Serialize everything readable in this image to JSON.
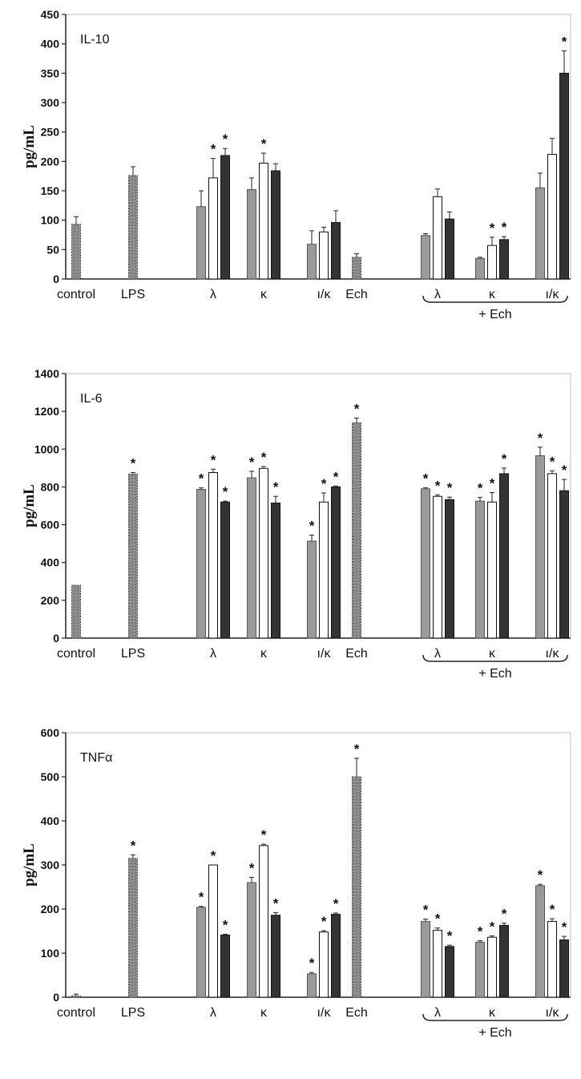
{
  "colors": {
    "gray": "#9a9a9a",
    "white": "#ffffff",
    "dark": "#333333",
    "stipple": "#8f8f8f",
    "axis": "#222222",
    "frame": "#bdbdbd"
  },
  "chart_data": [
    {
      "type": "bar",
      "title": "IL-10",
      "ylabel": "pg/mL",
      "ylim": [
        0,
        450
      ],
      "yticks": [
        0,
        50,
        100,
        150,
        200,
        250,
        300,
        350,
        400,
        450
      ],
      "x_labels": [
        "control",
        "LPS",
        "λ",
        "κ",
        "ı/κ",
        "Ech",
        "λ",
        "κ",
        "ı/κ"
      ],
      "bracket_label": "+ Ech",
      "groups": [
        {
          "bars": [
            {
              "style": "stipple",
              "value": 93,
              "err": 13,
              "sig": false
            }
          ]
        },
        {
          "bars": [
            {
              "style": "stipple",
              "value": 176,
              "err": 15,
              "sig": false
            }
          ]
        },
        {
          "bars": [
            {
              "style": "gray",
              "value": 123,
              "err": 27,
              "sig": false
            },
            {
              "style": "white",
              "value": 172,
              "err": 33,
              "sig": true
            },
            {
              "style": "dark",
              "value": 210,
              "err": 12,
              "sig": true
            }
          ]
        },
        {
          "bars": [
            {
              "style": "gray",
              "value": 152,
              "err": 20,
              "sig": false
            },
            {
              "style": "white",
              "value": 197,
              "err": 17,
              "sig": true
            },
            {
              "style": "dark",
              "value": 184,
              "err": 12,
              "sig": false
            }
          ]
        },
        {
          "bars": [
            {
              "style": "gray",
              "value": 59,
              "err": 23,
              "sig": false
            },
            {
              "style": "white",
              "value": 80,
              "err": 8,
              "sig": false
            },
            {
              "style": "dark",
              "value": 96,
              "err": 20,
              "sig": false
            }
          ]
        },
        {
          "bars": [
            {
              "style": "stipple",
              "value": 37,
              "err": 6,
              "sig": false
            }
          ]
        },
        {
          "bars": [
            {
              "style": "gray",
              "value": 74,
              "err": 3,
              "sig": false
            },
            {
              "style": "white",
              "value": 140,
              "err": 13,
              "sig": false
            },
            {
              "style": "dark",
              "value": 102,
              "err": 12,
              "sig": false
            }
          ]
        },
        {
          "bars": [
            {
              "style": "gray",
              "value": 35,
              "err": 2,
              "sig": false
            },
            {
              "style": "white",
              "value": 57,
              "err": 14,
              "sig": true
            },
            {
              "style": "dark",
              "value": 67,
              "err": 5,
              "sig": true
            }
          ]
        },
        {
          "bars": [
            {
              "style": "gray",
              "value": 155,
              "err": 25,
              "sig": false
            },
            {
              "style": "white",
              "value": 212,
              "err": 27,
              "sig": false
            },
            {
              "style": "dark",
              "value": 350,
              "err": 38,
              "sig": true
            }
          ]
        }
      ]
    },
    {
      "type": "bar",
      "title": "IL-6",
      "ylabel": "pg/mL",
      "ylim": [
        0,
        1400
      ],
      "yticks": [
        0,
        200,
        400,
        600,
        800,
        1000,
        1200,
        1400
      ],
      "x_labels": [
        "control",
        "LPS",
        "λ",
        "κ",
        "ı/κ",
        "Ech",
        "λ",
        "κ",
        "ı/κ"
      ],
      "bracket_label": "+ Ech",
      "groups": [
        {
          "bars": [
            {
              "style": "stipple",
              "value": 280,
              "err": 0,
              "sig": false
            }
          ]
        },
        {
          "bars": [
            {
              "style": "stipple",
              "value": 868,
              "err": 8,
              "sig": true
            }
          ]
        },
        {
          "bars": [
            {
              "style": "gray",
              "value": 787,
              "err": 8,
              "sig": true
            },
            {
              "style": "white",
              "value": 876,
              "err": 18,
              "sig": true
            },
            {
              "style": "dark",
              "value": 720,
              "err": 5,
              "sig": true
            }
          ]
        },
        {
          "bars": [
            {
              "style": "gray",
              "value": 848,
              "err": 35,
              "sig": true
            },
            {
              "style": "white",
              "value": 898,
              "err": 10,
              "sig": true
            },
            {
              "style": "dark",
              "value": 715,
              "err": 35,
              "sig": true
            }
          ]
        },
        {
          "bars": [
            {
              "style": "gray",
              "value": 513,
              "err": 32,
              "sig": true
            },
            {
              "style": "white",
              "value": 720,
              "err": 48,
              "sig": true
            },
            {
              "style": "dark",
              "value": 800,
              "err": 5,
              "sig": true
            }
          ]
        },
        {
          "bars": [
            {
              "style": "stipple",
              "value": 1140,
              "err": 25,
              "sig": true
            }
          ]
        },
        {
          "bars": [
            {
              "style": "gray",
              "value": 790,
              "err": 6,
              "sig": true
            },
            {
              "style": "white",
              "value": 750,
              "err": 8,
              "sig": true
            },
            {
              "style": "dark",
              "value": 733,
              "err": 13,
              "sig": true
            }
          ]
        },
        {
          "bars": [
            {
              "style": "gray",
              "value": 725,
              "err": 20,
              "sig": true
            },
            {
              "style": "white",
              "value": 720,
              "err": 50,
              "sig": true
            },
            {
              "style": "dark",
              "value": 870,
              "err": 30,
              "sig": true
            }
          ]
        },
        {
          "bars": [
            {
              "style": "gray",
              "value": 965,
              "err": 45,
              "sig": true
            },
            {
              "style": "white",
              "value": 870,
              "err": 15,
              "sig": true
            },
            {
              "style": "dark",
              "value": 780,
              "err": 60,
              "sig": true
            }
          ]
        }
      ]
    },
    {
      "type": "bar",
      "title": "TNFα",
      "ylabel": "pg/mL",
      "ylim": [
        0,
        600
      ],
      "yticks": [
        0,
        100,
        200,
        300,
        400,
        500,
        600
      ],
      "x_labels": [
        "control",
        "LPS",
        "λ",
        "κ",
        "ı/κ",
        "Ech",
        "λ",
        "κ",
        "ı/κ"
      ],
      "bracket_label": "+ Ech",
      "groups": [
        {
          "bars": [
            {
              "style": "stipple",
              "value": 3,
              "err": 4,
              "sig": false
            }
          ]
        },
        {
          "bars": [
            {
              "style": "stipple",
              "value": 315,
              "err": 8,
              "sig": true
            }
          ]
        },
        {
          "bars": [
            {
              "style": "gray",
              "value": 204,
              "err": 2,
              "sig": true
            },
            {
              "style": "white",
              "value": 300,
              "err": 0,
              "sig": true
            },
            {
              "style": "dark",
              "value": 141,
              "err": 2,
              "sig": true
            }
          ]
        },
        {
          "bars": [
            {
              "style": "gray",
              "value": 260,
              "err": 12,
              "sig": true
            },
            {
              "style": "white",
              "value": 344,
              "err": 3,
              "sig": true
            },
            {
              "style": "dark",
              "value": 186,
              "err": 6,
              "sig": true
            }
          ]
        },
        {
          "bars": [
            {
              "style": "gray",
              "value": 53,
              "err": 3,
              "sig": true
            },
            {
              "style": "white",
              "value": 148,
              "err": 3,
              "sig": true
            },
            {
              "style": "dark",
              "value": 188,
              "err": 3,
              "sig": true
            }
          ]
        },
        {
          "bars": [
            {
              "style": "stipple",
              "value": 500,
              "err": 42,
              "sig": true
            }
          ]
        },
        {
          "bars": [
            {
              "style": "gray",
              "value": 172,
              "err": 5,
              "sig": true
            },
            {
              "style": "white",
              "value": 152,
              "err": 5,
              "sig": true
            },
            {
              "style": "dark",
              "value": 115,
              "err": 3,
              "sig": true
            }
          ]
        },
        {
          "bars": [
            {
              "style": "gray",
              "value": 125,
              "err": 3,
              "sig": true
            },
            {
              "style": "white",
              "value": 136,
              "err": 3,
              "sig": true
            },
            {
              "style": "dark",
              "value": 163,
              "err": 5,
              "sig": true
            }
          ]
        },
        {
          "bars": [
            {
              "style": "gray",
              "value": 253,
              "err": 3,
              "sig": true
            },
            {
              "style": "white",
              "value": 172,
              "err": 6,
              "sig": true
            },
            {
              "style": "dark",
              "value": 130,
              "err": 8,
              "sig": true
            }
          ]
        }
      ]
    }
  ]
}
